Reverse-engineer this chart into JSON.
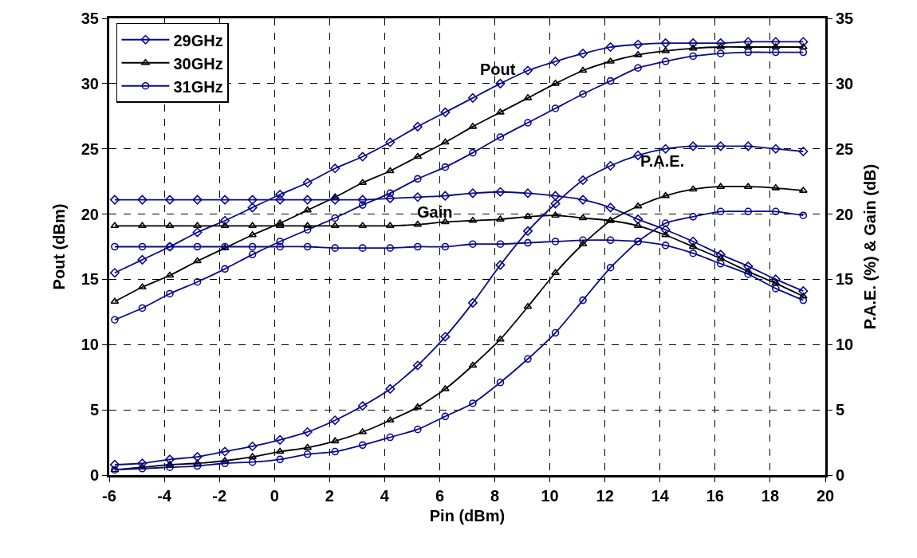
{
  "chart_data": {
    "type": "line",
    "xlabel": "Pin (dBm)",
    "ylabel": "Pout (dBm)",
    "y2label": "P.A.E. (%) & Gain (dB)",
    "x": [
      -5.8,
      -4.8,
      -3.8,
      -2.8,
      -1.8,
      -0.8,
      0.2,
      1.2,
      2.2,
      3.2,
      4.2,
      5.2,
      6.2,
      7.2,
      8.2,
      9.2,
      10.2,
      11.2,
      12.2,
      13.2,
      14.2,
      15.2,
      16.2,
      17.2,
      18.2,
      19.2
    ],
    "xlim": [
      -6,
      20
    ],
    "xticks": [
      -6,
      -4,
      -2,
      0,
      2,
      4,
      6,
      8,
      10,
      12,
      14,
      16,
      18,
      20
    ],
    "ylim": [
      0,
      35
    ],
    "yticks": [
      0,
      5,
      10,
      15,
      20,
      25,
      30,
      35
    ],
    "y2lim": [
      0,
      35
    ],
    "y2ticks": [
      0,
      5,
      10,
      15,
      20,
      25,
      30,
      35
    ],
    "grid": true,
    "legend": "top left",
    "line_style": "solid",
    "series": [
      {
        "name": "29GHz",
        "color": "#0a0a8c",
        "marker": "diamond",
        "values": [
          15.5,
          16.5,
          17.5,
          18.6,
          19.5,
          20.5,
          21.5,
          22.4,
          23.5,
          24.4,
          25.5,
          26.7,
          27.8,
          28.9,
          30.0,
          31.0,
          31.7,
          32.3,
          32.8,
          33.0,
          33.1,
          33.1,
          33.1,
          33.2,
          33.2,
          33.2
        ]
      },
      {
        "name": "30GHz",
        "color": "#000000",
        "marker": "triangle",
        "values": [
          13.3,
          14.4,
          15.3,
          16.4,
          17.4,
          18.4,
          19.3,
          20.3,
          21.3,
          22.4,
          23.3,
          24.4,
          25.5,
          26.7,
          27.8,
          28.9,
          30.0,
          31.0,
          31.7,
          32.2,
          32.5,
          32.7,
          32.8,
          32.8,
          32.8,
          32.8
        ]
      },
      {
        "name": "31GHz",
        "color": "#0a0a8c",
        "marker": "circle",
        "values": [
          11.9,
          12.8,
          13.9,
          14.8,
          15.8,
          16.9,
          17.9,
          18.8,
          19.7,
          20.7,
          21.6,
          22.7,
          23.6,
          24.7,
          25.9,
          27.0,
          28.1,
          29.2,
          30.2,
          31.2,
          31.7,
          32.1,
          32.3,
          32.4,
          32.4,
          32.4
        ]
      },
      {
        "color": "#0a0a8c",
        "marker": "diamond",
        "axis": "y2",
        "values": [
          21.1,
          21.1,
          21.1,
          21.1,
          21.1,
          21.1,
          21.1,
          21.1,
          21.1,
          21.1,
          21.2,
          21.3,
          21.4,
          21.6,
          21.7,
          21.6,
          21.4,
          21.1,
          20.5,
          19.6,
          18.8,
          17.9,
          16.9,
          16.0,
          15.0,
          14.1
        ]
      },
      {
        "color": "#000000",
        "marker": "triangle",
        "axis": "y2",
        "values": [
          19.1,
          19.1,
          19.1,
          19.1,
          19.1,
          19.1,
          19.1,
          19.1,
          19.1,
          19.1,
          19.1,
          19.2,
          19.4,
          19.5,
          19.6,
          19.8,
          19.9,
          19.7,
          19.5,
          19.1,
          18.4,
          17.5,
          16.6,
          15.6,
          14.7,
          13.7
        ]
      },
      {
        "color": "#0a0a8c",
        "marker": "circle",
        "axis": "y2",
        "values": [
          17.5,
          17.5,
          17.5,
          17.5,
          17.5,
          17.5,
          17.5,
          17.5,
          17.4,
          17.4,
          17.4,
          17.5,
          17.5,
          17.7,
          17.7,
          17.8,
          17.9,
          18.0,
          18.0,
          17.9,
          17.6,
          17.0,
          16.2,
          15.4,
          14.3,
          13.4
        ]
      },
      {
        "color": "#0a0a8c",
        "marker": "diamond",
        "axis": "y2",
        "values": [
          0.8,
          0.9,
          1.2,
          1.4,
          1.8,
          2.2,
          2.7,
          3.3,
          4.2,
          5.3,
          6.6,
          8.4,
          10.6,
          13.2,
          16.1,
          18.7,
          20.8,
          22.6,
          23.7,
          24.5,
          25.0,
          25.2,
          25.2,
          25.2,
          25.0,
          24.8
        ]
      },
      {
        "color": "#000000",
        "marker": "triangle",
        "axis": "y2",
        "values": [
          0.4,
          0.6,
          0.8,
          0.9,
          1.1,
          1.4,
          1.8,
          2.1,
          2.6,
          3.3,
          4.2,
          5.2,
          6.6,
          8.4,
          10.4,
          12.9,
          15.5,
          17.7,
          19.5,
          20.6,
          21.4,
          21.9,
          22.1,
          22.1,
          22.0,
          21.8
        ]
      },
      {
        "color": "#0a0a8c",
        "marker": "circle",
        "axis": "y2",
        "values": [
          0.4,
          0.5,
          0.6,
          0.7,
          0.9,
          1.0,
          1.2,
          1.6,
          1.8,
          2.3,
          2.9,
          3.5,
          4.5,
          5.5,
          7.1,
          8.9,
          10.9,
          13.4,
          15.9,
          17.9,
          19.3,
          19.8,
          20.2,
          20.2,
          20.2,
          19.9
        ]
      }
    ],
    "annotations": [
      "Pout",
      "Gain",
      "P.A.E."
    ]
  }
}
